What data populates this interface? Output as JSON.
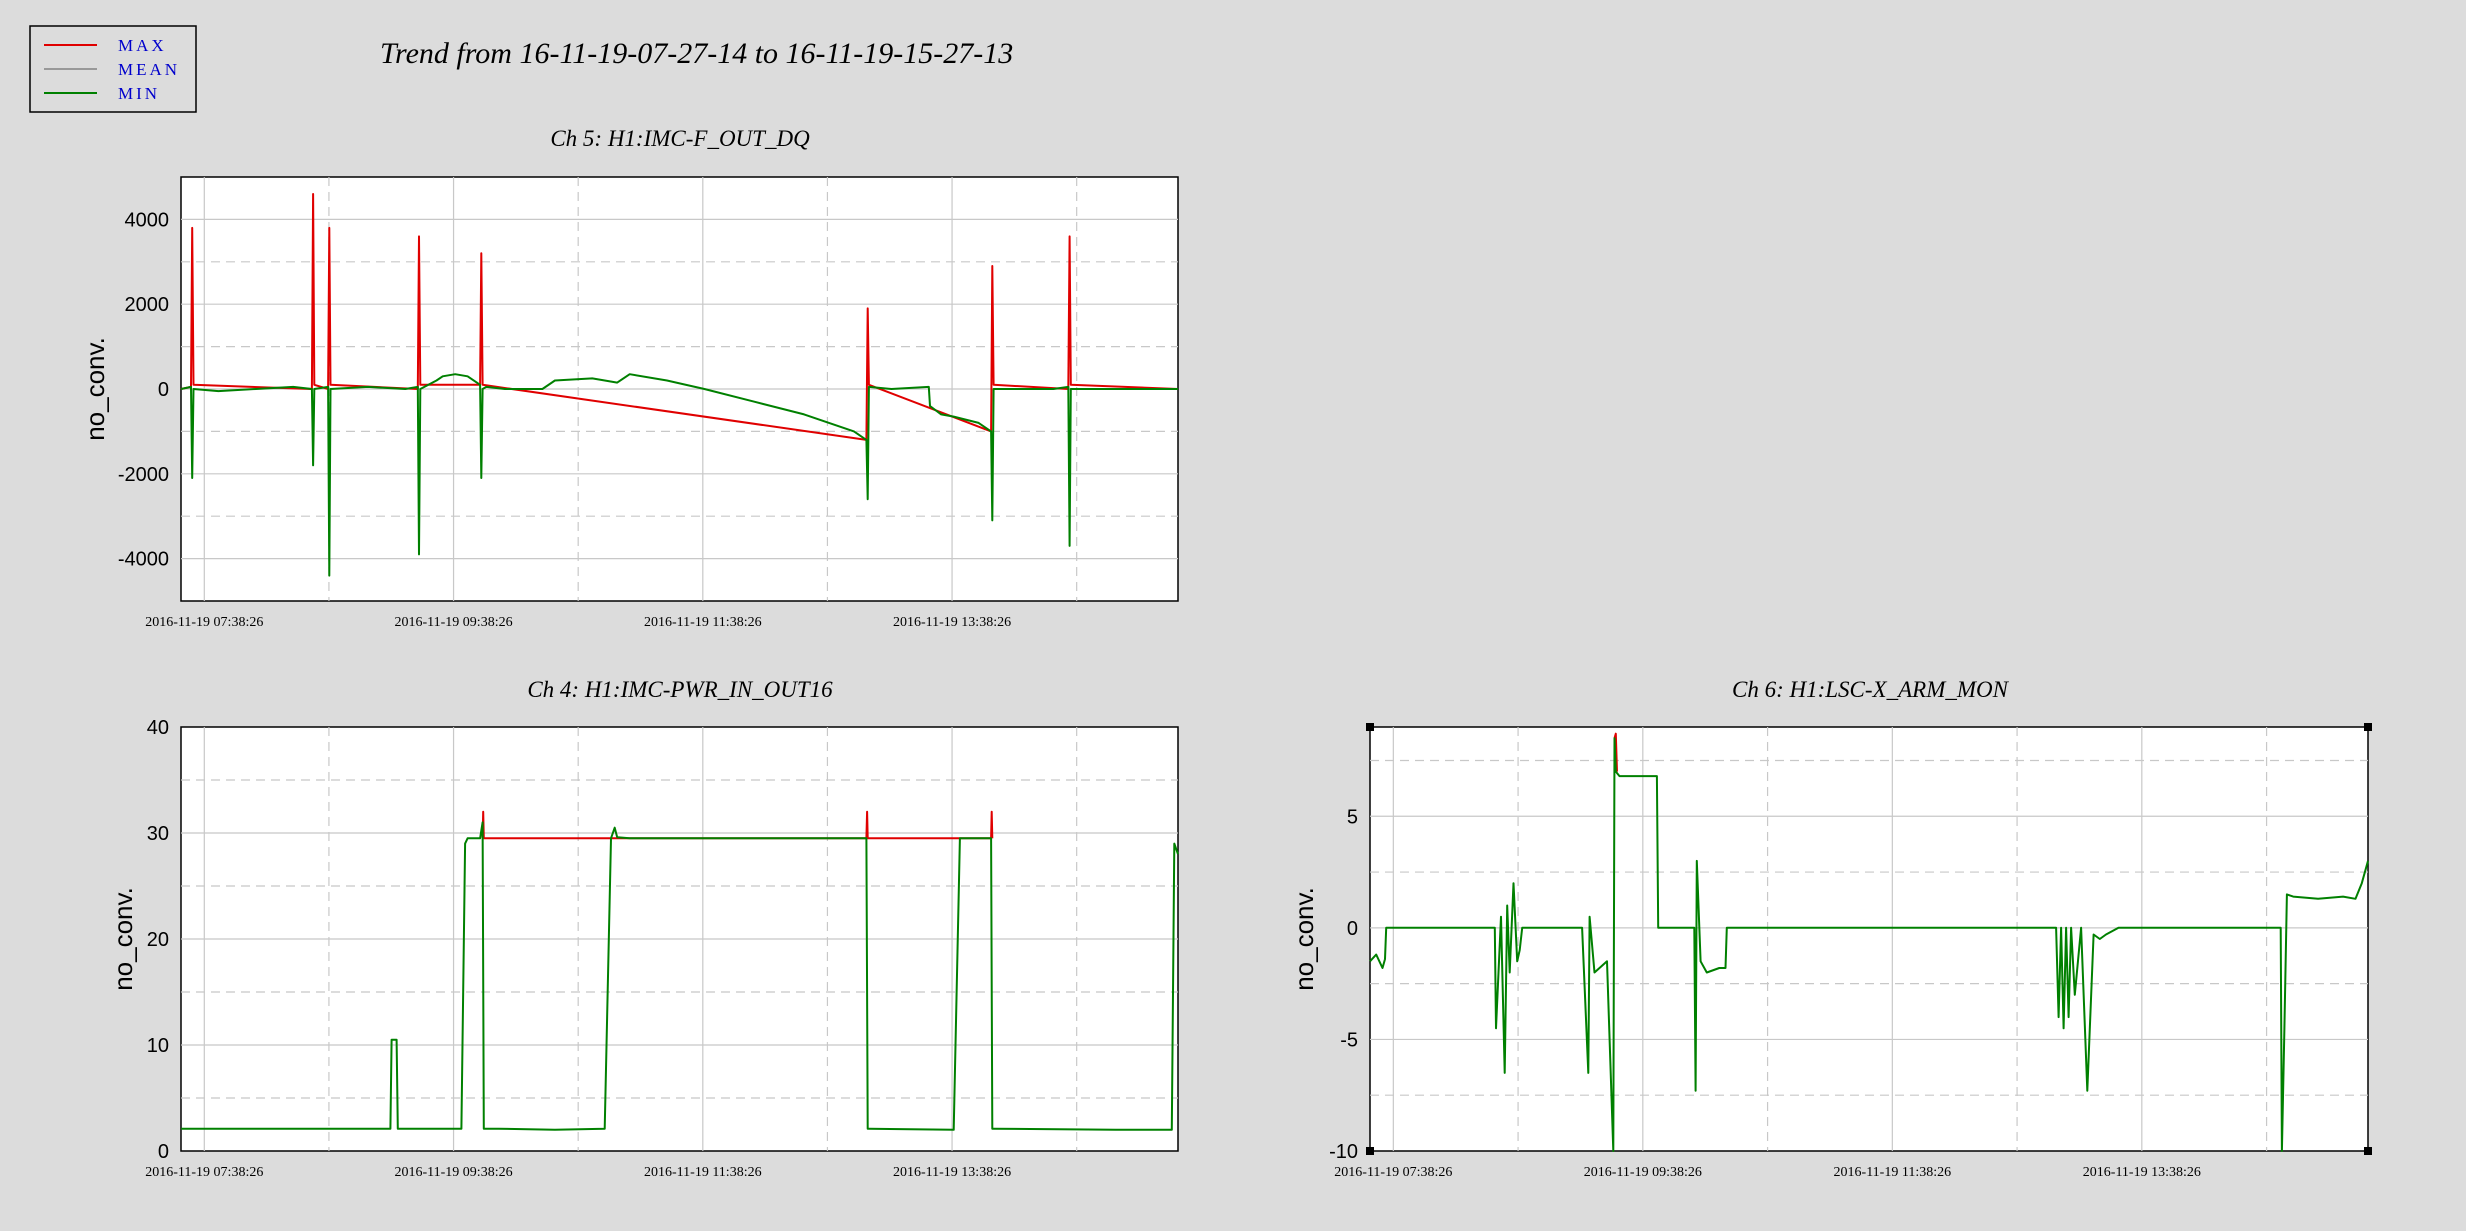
{
  "page_title": "Trend from 16-11-19-07-27-14 to 16-11-19-15-27-13",
  "legend": {
    "items": [
      {
        "label": "MAX",
        "color": "#e00000"
      },
      {
        "label": "MEAN",
        "color": "#999999"
      },
      {
        "label": "MIN",
        "color": "#008000"
      }
    ]
  },
  "colors": {
    "background": "#dcdcdc",
    "plot_background": "#ffffff",
    "max": "#e00000",
    "mean": "#999999",
    "min": "#008000",
    "legend_text": "#0000cc",
    "grid_solid": "#c8c8c8",
    "grid_dashed": "#c8c8c8"
  },
  "chart_data": [
    {
      "type": "line",
      "title": "Ch 5: H1:IMC-F_OUT_DQ",
      "xlabel": "",
      "ylabel": "no_conv.",
      "x_unit": "hours since 2016-11-19 07:27:14",
      "xlim": [
        0,
        8
      ],
      "ylim": [
        -5000,
        5000
      ],
      "yticks": [
        -4000,
        -2000,
        0,
        2000,
        4000
      ],
      "xticks": [
        {
          "x": 0.187,
          "label": "2016-11-19 07:38:26"
        },
        {
          "x": 2.187,
          "label": "2016-11-19 09:38:26"
        },
        {
          "x": 4.187,
          "label": "2016-11-19 11:38:26"
        },
        {
          "x": 6.187,
          "label": "2016-11-19 13:38:26"
        }
      ],
      "grid": true,
      "series": [
        {
          "name": "MIN",
          "x": [
            0,
            0.08,
            0.09,
            0.1,
            0.3,
            0.6,
            0.9,
            1.05,
            1.06,
            1.07,
            1.18,
            1.19,
            1.2,
            1.5,
            1.8,
            1.9,
            1.91,
            1.92,
            2.05,
            2.1,
            2.2,
            2.3,
            2.4,
            2.41,
            2.42,
            2.45,
            2.6,
            2.9,
            3.0,
            3.3,
            3.5,
            3.6,
            3.9,
            4.2,
            4.6,
            5.0,
            5.4,
            5.5,
            5.51,
            5.52,
            5.7,
            6.0,
            6.01,
            6.1,
            6.2,
            6.4,
            6.5,
            6.51,
            6.52,
            6.8,
            7.0,
            7.12,
            7.13,
            7.14,
            7.4,
            7.8,
            8.0
          ],
          "y": [
            0,
            50,
            -2100,
            0,
            -50,
            0,
            50,
            0,
            -1800,
            0,
            50,
            -4400,
            0,
            50,
            0,
            50,
            -3900,
            0,
            200,
            300,
            350,
            300,
            100,
            -2100,
            0,
            50,
            0,
            0,
            200,
            250,
            150,
            350,
            200,
            0,
            -300,
            -600,
            -1000,
            -1200,
            -2600,
            50,
            0,
            50,
            -400,
            -600,
            -650,
            -800,
            -1000,
            -3100,
            0,
            0,
            0,
            50,
            -3700,
            0,
            0,
            0,
            0
          ]
        },
        {
          "name": "MAX",
          "x": [
            0,
            0.08,
            0.09,
            0.1,
            1.05,
            1.06,
            1.07,
            1.18,
            1.19,
            1.2,
            1.9,
            1.91,
            1.92,
            2.4,
            2.41,
            2.42,
            5.5,
            5.51,
            5.52,
            6.5,
            6.51,
            6.52,
            7.12,
            7.13,
            7.14,
            8.0
          ],
          "y": [
            0,
            50,
            3800,
            100,
            0,
            4600,
            100,
            0,
            3800,
            100,
            0,
            3600,
            100,
            100,
            3200,
            100,
            -1200,
            1900,
            100,
            -1000,
            2900,
            100,
            0,
            3600,
            100,
            0
          ]
        }
      ]
    },
    {
      "type": "line",
      "title": "Ch 4: H1:IMC-PWR_IN_OUT16",
      "xlabel": "",
      "ylabel": "no_conv.",
      "x_unit": "hours since 2016-11-19 07:27:14",
      "xlim": [
        0,
        8
      ],
      "ylim": [
        0,
        40
      ],
      "yticks": [
        0,
        10,
        20,
        30,
        40
      ],
      "xticks": [
        {
          "x": 0.187,
          "label": "2016-11-19 07:38:26"
        },
        {
          "x": 2.187,
          "label": "2016-11-19 09:38:26"
        },
        {
          "x": 4.187,
          "label": "2016-11-19 11:38:26"
        },
        {
          "x": 6.187,
          "label": "2016-11-19 13:38:26"
        }
      ],
      "grid": true,
      "series": [
        {
          "name": "MIN",
          "x": [
            0,
            1.68,
            1.69,
            1.73,
            1.74,
            2.25,
            2.28,
            2.3,
            2.4,
            2.42,
            2.43,
            2.44,
            2.55,
            3.0,
            3.4,
            3.45,
            3.48,
            3.5,
            3.6,
            5.5,
            5.51,
            5.52,
            6.2,
            6.25,
            6.3,
            6.5,
            6.51,
            6.52,
            7.5,
            7.95,
            7.97,
            8.0
          ],
          "y": [
            2.1,
            2.1,
            10.5,
            10.5,
            2.1,
            2.1,
            29,
            29.5,
            29.5,
            31,
            2.1,
            2.1,
            2.1,
            2.0,
            2.1,
            29.5,
            30.5,
            29.6,
            29.5,
            29.5,
            2.1,
            2.1,
            2.0,
            29.5,
            29.5,
            29.5,
            2.1,
            2.1,
            2.0,
            2.0,
            29,
            28
          ]
        },
        {
          "name": "MAX",
          "x": [
            2.42,
            2.425,
            2.43,
            5.5,
            5.505,
            5.51,
            6.5,
            6.505,
            6.51
          ],
          "y": [
            29.5,
            32,
            29.5,
            29.5,
            32,
            29.5,
            29.5,
            32,
            29.5
          ]
        }
      ]
    },
    {
      "type": "line",
      "title": "Ch 6: H1:LSC-X_ARM_MON",
      "xlabel": "",
      "ylabel": "no_conv.",
      "x_unit": "hours since 2016-11-19 07:27:14",
      "xlim": [
        0,
        8
      ],
      "ylim": [
        -10,
        9
      ],
      "yticks": [
        -10,
        -5,
        0,
        5
      ],
      "xticks": [
        {
          "x": 0.187,
          "label": "2016-11-19 07:38:26"
        },
        {
          "x": 2.187,
          "label": "2016-11-19 09:38:26"
        },
        {
          "x": 4.187,
          "label": "2016-11-19 11:38:26"
        },
        {
          "x": 6.187,
          "label": "2016-11-19 13:38:26"
        }
      ],
      "grid": true,
      "series": [
        {
          "name": "MIN",
          "x": [
            0,
            0.05,
            0.1,
            0.12,
            0.13,
            0.2,
            1.0,
            1.01,
            1.05,
            1.08,
            1.1,
            1.12,
            1.15,
            1.18,
            1.2,
            1.22,
            1.25,
            1.3,
            1.7,
            1.75,
            1.76,
            1.8,
            1.9,
            1.95,
            1.96,
            1.97,
            2.0,
            2.05,
            2.1,
            2.3,
            2.31,
            2.6,
            2.61,
            2.62,
            2.65,
            2.7,
            2.8,
            2.85,
            2.86,
            3.0,
            5.5,
            5.52,
            5.54,
            5.56,
            5.58,
            5.6,
            5.62,
            5.65,
            5.7,
            5.75,
            5.8,
            5.85,
            5.9,
            6.0,
            7.3,
            7.31,
            7.33,
            7.35,
            7.4,
            7.6,
            7.8,
            7.9,
            7.95,
            8.0
          ],
          "y": [
            -1.5,
            -1.2,
            -1.8,
            -1.4,
            0,
            0,
            0,
            -4.5,
            0.5,
            -6.5,
            1,
            -2,
            2,
            -1.5,
            -1,
            0,
            0,
            0,
            0,
            -6.5,
            0.5,
            -2,
            -1.5,
            -10,
            8.5,
            7,
            6.8,
            6.8,
            6.8,
            6.8,
            0,
            0,
            -7.3,
            3,
            -1.5,
            -2,
            -1.8,
            -1.8,
            0,
            0,
            0,
            -4,
            0,
            -4.5,
            0,
            -4,
            0,
            -3,
            0,
            -7.3,
            -0.3,
            -0.5,
            -0.3,
            0,
            0,
            -10,
            -4.5,
            1.5,
            1.4,
            1.3,
            1.4,
            1.3,
            2,
            3
          ]
        },
        {
          "name": "MAX",
          "x": [
            1.96,
            1.97,
            1.98
          ],
          "y": [
            8.5,
            8.7,
            7
          ]
        }
      ]
    }
  ]
}
